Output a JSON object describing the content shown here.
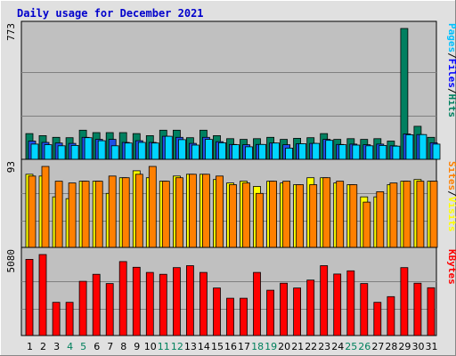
{
  "chart_data": {
    "type": "bar",
    "title": "Daily usage for December 2021",
    "days": [
      "1",
      "2",
      "3",
      "4",
      "5",
      "6",
      "7",
      "8",
      "9",
      "10",
      "11",
      "12",
      "13",
      "14",
      "15",
      "16",
      "17",
      "18",
      "19",
      "20",
      "21",
      "22",
      "23",
      "24",
      "25",
      "26",
      "27",
      "28",
      "29",
      "30",
      "31"
    ],
    "weekend_days": [
      "4",
      "5",
      "11",
      "12",
      "18",
      "19",
      "25",
      "26"
    ],
    "panels": [
      {
        "id": "hits-files-pages",
        "ymax": 773,
        "ymax_label": "773",
        "legend": [
          {
            "text": "Pages",
            "color": "#00c0ff"
          },
          {
            "text": "/",
            "color": "#000000"
          },
          {
            "text": "Files",
            "color": "#0000ff"
          },
          {
            "text": "/",
            "color": "#000000"
          },
          {
            "text": "Hits",
            "color": "#008060"
          }
        ],
        "series": [
          {
            "name": "Hits",
            "color": "#008060",
            "values": [
              152,
              140,
              130,
              128,
              172,
              158,
              158,
              158,
              152,
              140,
              172,
              172,
              128,
              172,
              140,
              122,
              118,
              122,
              130,
              118,
              124,
              128,
              152,
              118,
              122,
              118,
              122,
              108,
              773,
              195,
              130
            ]
          },
          {
            "name": "Files",
            "color": "#1f4fe8",
            "values": [
              108,
              100,
              96,
              94,
              130,
              118,
              118,
              100,
              110,
              100,
              136,
              130,
              94,
              130,
              104,
              88,
              86,
              88,
              96,
              86,
              92,
              94,
              118,
              88,
              90,
              86,
              90,
              80,
              150,
              146,
              98
            ]
          },
          {
            "name": "Pages",
            "color": "#00d4ff",
            "values": [
              90,
              86,
              80,
              82,
              128,
              110,
              80,
              96,
              100,
              96,
              136,
              116,
              84,
              118,
              98,
              86,
              74,
              88,
              96,
              66,
              92,
              94,
              112,
              86,
              84,
              80,
              82,
              78,
              145,
              146,
              90
            ]
          }
        ]
      },
      {
        "id": "visits-sites",
        "ymax": 93,
        "ymax_label": "93",
        "legend": [
          {
            "text": "Sites",
            "color": "#ff8000"
          },
          {
            "text": "/",
            "color": "#000000"
          },
          {
            "text": "Visits",
            "color": "#ffff00"
          }
        ],
        "series": [
          {
            "name": "Visits",
            "color": "#ffff00",
            "values": [
              84,
              82,
              58,
              56,
              76,
              76,
              62,
              80,
              88,
              80,
              76,
              82,
              84,
              84,
              78,
              74,
              76,
              70,
              76,
              74,
              72,
              80,
              80,
              74,
              72,
              58,
              58,
              72,
              76,
              78,
              76
            ]
          },
          {
            "name": "Sites",
            "color": "#ff8000",
            "values": [
              82,
              93,
              76,
              74,
              76,
              76,
              82,
              80,
              84,
              93,
              76,
              80,
              84,
              84,
              82,
              72,
              74,
              62,
              76,
              76,
              72,
              72,
              80,
              76,
              72,
              52,
              64,
              74,
              76,
              76,
              76
            ]
          }
        ]
      },
      {
        "id": "kbytes",
        "ymax": 5080,
        "ymax_label": "5080",
        "legend": [
          {
            "text": "KBytes",
            "color": "#ff0000"
          }
        ],
        "series": [
          {
            "name": "KBytes",
            "color": "#ff0000",
            "values": [
              4780,
              5080,
              2080,
              2080,
              3400,
              3840,
              3260,
              4640,
              4280,
              3960,
              3840,
              4260,
              4380,
              3960,
              2980,
              2340,
              2340,
              3960,
              2840,
              3280,
              2980,
              3480,
              4380,
              3860,
              4060,
              3260,
              2080,
              2440,
              4260,
              3280,
              3000
            ]
          }
        ]
      }
    ]
  }
}
